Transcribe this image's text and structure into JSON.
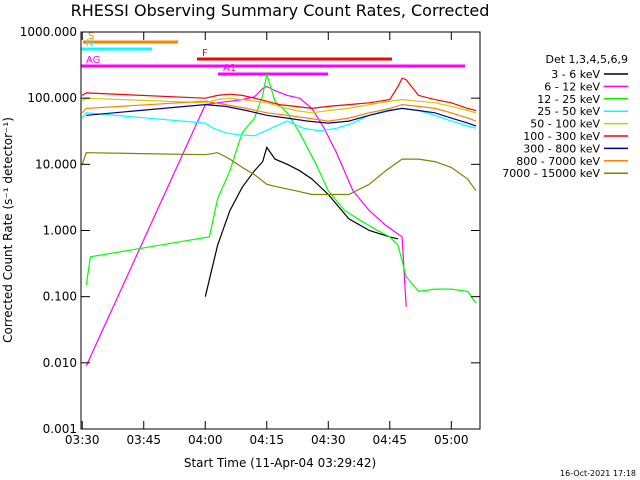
{
  "chart_data": {
    "type": "line",
    "title": "RHESSI Observing Summary Count Rates, Corrected",
    "xlabel": "Start Time (11-Apr-04 03:29:42)",
    "ylabel": "Corrected Count Rate (s⁻¹ detector⁻¹)",
    "yscale": "log",
    "ylim": [
      0.001,
      1000
    ],
    "xlim": [
      "03:29:42",
      "05:07:00"
    ],
    "x_ticks": [
      "03:30",
      "03:45",
      "04:00",
      "04:15",
      "04:30",
      "04:45",
      "05:00"
    ],
    "y_ticks": [
      "0.001",
      "0.010",
      "0.100",
      "1.000",
      "10.000",
      "100.000",
      "1000.000"
    ],
    "legend_title": "Det 1,3,4,5,6,9",
    "legend_position": "right",
    "footer_date": "16-Oct-2021 17:18",
    "series": [
      {
        "name": "3 - 6 keV",
        "color": "#000000",
        "x": [
          "04:00",
          "04:03",
          "04:06",
          "04:09",
          "04:12",
          "04:14",
          "04:15",
          "04:17",
          "04:20",
          "04:23",
          "04:26",
          "04:30",
          "04:35",
          "04:40",
          "04:45",
          "04:47"
        ],
        "y": [
          0.1,
          0.6,
          2,
          4.5,
          8,
          11,
          18,
          12,
          10,
          8,
          6,
          3.5,
          1.5,
          1,
          0.8,
          0.75
        ]
      },
      {
        "name": "6 - 12 keV",
        "color": "#ff00ff",
        "x": [
          "03:31",
          "04:00",
          "04:03",
          "04:06",
          "04:09",
          "04:12",
          "04:14",
          "04:15",
          "04:17",
          "04:20",
          "04:23",
          "04:26",
          "04:29",
          "04:32",
          "04:36",
          "04:40",
          "04:44",
          "04:48",
          "04:49"
        ],
        "y": [
          0.009,
          80,
          85,
          90,
          95,
          105,
          140,
          150,
          130,
          110,
          100,
          70,
          35,
          15,
          4,
          2,
          1.2,
          0.8,
          0.07
        ]
      },
      {
        "name": "12 - 25 keV",
        "color": "#00ff00",
        "x": [
          "03:31",
          "03:32",
          "04:01",
          "04:03",
          "04:06",
          "04:09",
          "04:12",
          "04:14",
          "04:15",
          "04:17",
          "04:20",
          "04:23",
          "04:27",
          "04:30",
          "04:34",
          "04:38",
          "04:42",
          "04:45",
          "04:47",
          "04:49",
          "04:52",
          "04:56",
          "05:00",
          "05:04",
          "05:06"
        ],
        "y": [
          0.15,
          0.4,
          0.8,
          3,
          8,
          30,
          50,
          110,
          230,
          90,
          60,
          30,
          10,
          4,
          2,
          1.4,
          1,
          0.8,
          0.6,
          0.2,
          0.12,
          0.13,
          0.13,
          0.12,
          0.08
        ]
      },
      {
        "name": "25 - 50 keV",
        "color": "#00ffff",
        "x": [
          "03:30",
          "03:31",
          "04:00",
          "04:02",
          "04:05",
          "04:08",
          "04:12",
          "04:16",
          "04:20",
          "04:24",
          "04:28",
          "04:32",
          "04:36",
          "04:40",
          "04:44",
          "04:48",
          "04:52",
          "04:56",
          "05:00",
          "05:04",
          "05:06"
        ],
        "y": [
          50,
          60,
          42,
          35,
          30,
          28,
          27,
          35,
          45,
          35,
          32,
          35,
          42,
          55,
          65,
          70,
          65,
          55,
          45,
          38,
          35
        ]
      },
      {
        "name": "50 - 100 keV",
        "color": "#cccc00",
        "x": [
          "03:30",
          "03:31",
          "04:00",
          "04:03",
          "04:06",
          "04:09",
          "04:12",
          "04:15",
          "04:18",
          "04:22",
          "04:26",
          "04:30",
          "04:35",
          "04:40",
          "04:45",
          "04:48",
          "04:52",
          "04:56",
          "05:00",
          "05:04",
          "05:06"
        ],
        "y": [
          90,
          100,
          85,
          95,
          100,
          95,
          90,
          85,
          75,
          65,
          60,
          65,
          70,
          80,
          90,
          95,
          90,
          85,
          75,
          65,
          60
        ]
      },
      {
        "name": "100 - 300 keV",
        "color": "#ff0000",
        "x": [
          "03:30",
          "03:31",
          "04:00",
          "04:03",
          "04:06",
          "04:09",
          "04:12",
          "04:15",
          "04:18",
          "04:22",
          "04:26",
          "04:30",
          "04:35",
          "04:40",
          "04:45",
          "04:47",
          "04:48",
          "04:49",
          "04:52",
          "04:56",
          "05:00",
          "05:04",
          "05:06"
        ],
        "y": [
          110,
          120,
          100,
          110,
          115,
          110,
          100,
          90,
          80,
          75,
          70,
          75,
          80,
          85,
          95,
          150,
          200,
          190,
          110,
          95,
          85,
          70,
          65
        ]
      },
      {
        "name": "300 - 800 keV",
        "color": "#000090",
        "x": [
          "03:31",
          "04:00",
          "04:05",
          "04:10",
          "04:15",
          "04:20",
          "04:25",
          "04:30",
          "04:35",
          "04:40",
          "04:45",
          "04:48",
          "04:52",
          "04:56",
          "05:00",
          "05:04",
          "05:06"
        ],
        "y": [
          55,
          80,
          75,
          65,
          55,
          50,
          45,
          42,
          45,
          55,
          65,
          70,
          65,
          60,
          50,
          42,
          38
        ]
      },
      {
        "name": "800 - 7000 keV",
        "color": "#ff8000",
        "x": [
          "03:30",
          "03:31",
          "04:00",
          "04:05",
          "04:10",
          "04:15",
          "04:20",
          "04:25",
          "04:30",
          "04:35",
          "04:40",
          "04:45",
          "04:48",
          "04:52",
          "04:56",
          "05:00",
          "05:04",
          "05:06"
        ],
        "y": [
          60,
          70,
          90,
          80,
          70,
          60,
          55,
          50,
          45,
          50,
          60,
          70,
          80,
          75,
          70,
          60,
          50,
          45
        ]
      },
      {
        "name": "7000 - 15000 keV",
        "color": "#808000",
        "x": [
          "03:30",
          "03:31",
          "04:00",
          "04:03",
          "04:06",
          "04:09",
          "04:12",
          "04:15",
          "04:18",
          "04:22",
          "04:26",
          "04:30",
          "04:35",
          "04:40",
          "04:44",
          "04:48",
          "04:52",
          "04:56",
          "05:00",
          "05:04",
          "05:06"
        ],
        "y": [
          10,
          15,
          14,
          15,
          12,
          9,
          7,
          5,
          4.5,
          4,
          3.5,
          3.5,
          3.5,
          5,
          8,
          12,
          12,
          11,
          9,
          6,
          4
        ]
      }
    ],
    "annotations": [
      {
        "label": "S",
        "color": "#ff8000"
      },
      {
        "label": "N",
        "color": "#00ffff"
      },
      {
        "label": "F",
        "color": "#ff0000"
      },
      {
        "label": "AG",
        "color": "#ff00ff"
      },
      {
        "label": "A1",
        "color": "#ff00ff"
      }
    ]
  }
}
